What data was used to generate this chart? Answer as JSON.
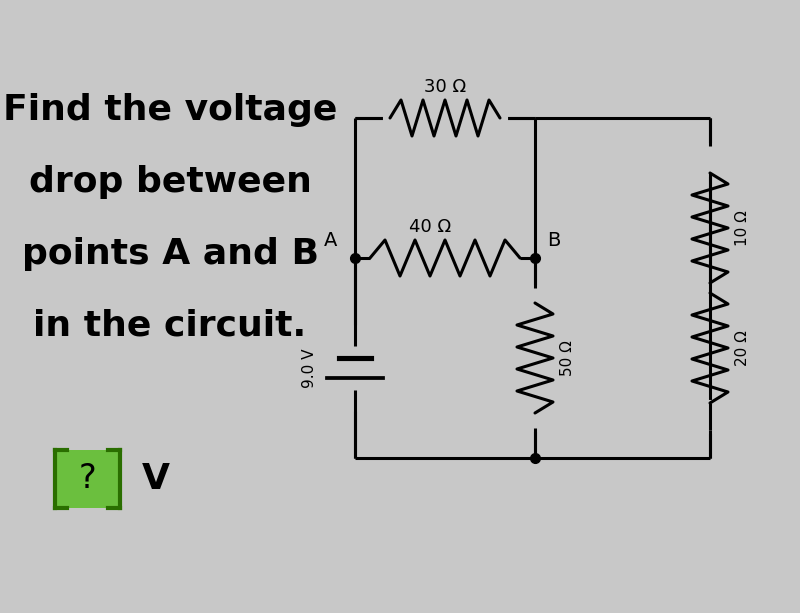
{
  "bg_color": "#c8c8c8",
  "text_color": "#000000",
  "line_color": "#000000",
  "title_lines": [
    "Find the voltage",
    "drop between",
    "points A and B",
    "in the circuit."
  ],
  "title_fontsize": 26,
  "question_box_color": "#6bbf3e",
  "question_box_edge_color": "#2a6e00",
  "question_text": "?",
  "question_unit": "V",
  "resistor_30_label": "30 Ω",
  "resistor_40_label": "40 Ω",
  "resistor_50_label": "50 Ω",
  "resistor_20_label": "20 Ω",
  "resistor_10_label": "10 Ω",
  "voltage_label": "9.0 V",
  "label_A": "A",
  "label_B": "B"
}
